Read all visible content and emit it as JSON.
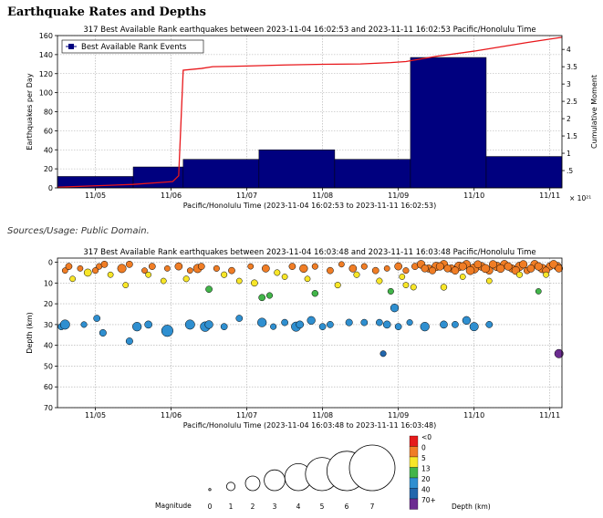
{
  "page": {
    "title": "Earthquake Rates and Depths",
    "sources": "Sources/Usage: Public Domain."
  },
  "chart_data": [
    {
      "type": "bar",
      "title": "317 Best Available Rank earthquakes between 2023-11-04 16:02:53 and 2023-11-11 16:02:53 Pacific/Honolulu Time",
      "xlabel": "Pacific/Honolulu Time (2023-11-04 16:02:53 to 2023-11-11 16:02:53)",
      "ylabel": "Earthquakes per Day",
      "y2label": "Cumulative Moment",
      "y2_multiplier": "× 10²¹",
      "x_ticks": [
        "11/05",
        "11/06",
        "11/07",
        "11/08",
        "11/09",
        "11/10",
        "11/11"
      ],
      "ylim": [
        0,
        160
      ],
      "y_ticks": [
        0,
        20,
        40,
        60,
        80,
        100,
        120,
        140,
        160
      ],
      "y2lim": [
        0,
        4.4
      ],
      "y2_ticks": [
        0.5,
        1,
        1.5,
        2,
        2.5,
        3,
        3.5,
        4
      ],
      "y2_tick_labels": [
        ".5",
        "1",
        "1.5",
        "2",
        "2.5",
        "3",
        "3.5",
        "4"
      ],
      "legend": {
        "label": "Best Available Rank Events",
        "position": "top-left"
      },
      "grid": true,
      "bar_color": "#00007f",
      "line_color": "#e8161a",
      "series": [
        {
          "name": "Best Available Rank Events",
          "bins": [
            {
              "start": 0.0,
              "end": 1.0,
              "value": 12
            },
            {
              "start": 1.0,
              "end": 1.66,
              "value": 22
            },
            {
              "start": 1.66,
              "end": 2.66,
              "value": 30
            },
            {
              "start": 2.66,
              "end": 3.66,
              "value": 40
            },
            {
              "start": 3.66,
              "end": 4.66,
              "value": 30
            },
            {
              "start": 4.66,
              "end": 5.66,
              "value": 137
            },
            {
              "start": 5.66,
              "end": 6.66,
              "value": 33
            }
          ]
        }
      ],
      "cumulative_moment": [
        [
          0.0,
          0.02
        ],
        [
          1.0,
          0.1
        ],
        [
          1.52,
          0.18
        ],
        [
          1.6,
          0.35
        ],
        [
          1.66,
          3.4
        ],
        [
          1.9,
          3.45
        ],
        [
          2.05,
          3.5
        ],
        [
          2.5,
          3.52
        ],
        [
          3.0,
          3.55
        ],
        [
          3.5,
          3.57
        ],
        [
          4.0,
          3.58
        ],
        [
          4.4,
          3.62
        ],
        [
          4.6,
          3.65
        ],
        [
          5.0,
          3.8
        ],
        [
          5.5,
          3.95
        ],
        [
          6.2,
          4.2
        ],
        [
          6.66,
          4.35
        ]
      ]
    },
    {
      "type": "scatter",
      "title": "317 Best Available Rank earthquakes between 2023-11-04 16:03:48 and 2023-11-11 16:03:48 Pacific/Honolulu Time",
      "xlabel": "Pacific/Honolulu Time (2023-11-04 16:03:48 to 2023-11-11 16:03:48)",
      "ylabel": "Depth (km)",
      "x_ticks": [
        "11/05",
        "11/06",
        "11/07",
        "11/08",
        "11/09",
        "11/10",
        "11/11"
      ],
      "ylim": [
        70,
        -2
      ],
      "y_ticks": [
        0,
        10,
        20,
        30,
        40,
        50,
        60,
        70
      ],
      "grid": true,
      "points": [
        [
          0.1,
          4,
          1.2
        ],
        [
          0.15,
          2,
          1.5
        ],
        [
          0.3,
          3,
          1.2
        ],
        [
          0.4,
          5,
          1.8
        ],
        [
          0.55,
          2,
          1.3
        ],
        [
          0.62,
          1,
          1.5
        ],
        [
          0.85,
          3,
          2.2
        ],
        [
          0.95,
          1,
          1.5
        ],
        [
          1.15,
          4,
          1.2
        ],
        [
          1.25,
          2,
          1.5
        ],
        [
          1.45,
          3,
          1.2
        ],
        [
          1.6,
          2,
          1.8
        ],
        [
          1.75,
          4,
          1.2
        ],
        [
          1.85,
          3,
          2.2
        ],
        [
          1.9,
          2,
          1.5
        ],
        [
          2.1,
          3,
          1.3
        ],
        [
          2.3,
          4,
          1.5
        ],
        [
          2.55,
          2,
          1.2
        ],
        [
          2.75,
          3,
          1.8
        ],
        [
          2.9,
          5,
          1.3
        ],
        [
          3.1,
          2,
          1.5
        ],
        [
          3.25,
          3,
          2.0
        ],
        [
          3.4,
          2,
          1.3
        ],
        [
          3.6,
          4,
          1.5
        ],
        [
          3.75,
          1,
          1.2
        ],
        [
          3.9,
          3,
          1.8
        ],
        [
          4.05,
          2,
          1.3
        ],
        [
          4.2,
          4,
          1.5
        ],
        [
          4.35,
          3,
          1.2
        ],
        [
          4.5,
          2,
          1.8
        ],
        [
          4.6,
          4,
          1.3
        ],
        [
          4.72,
          2,
          1.5
        ],
        [
          4.8,
          1,
          2.0
        ],
        [
          4.9,
          3,
          1.8
        ],
        [
          5.0,
          2,
          2.2
        ],
        [
          5.1,
          1,
          2.0
        ],
        [
          5.2,
          3,
          1.8
        ],
        [
          5.3,
          2,
          2.3
        ],
        [
          5.4,
          1,
          2.0
        ],
        [
          5.5,
          3,
          2.5
        ],
        [
          5.6,
          2,
          2.0
        ],
        [
          5.7,
          4,
          1.8
        ],
        [
          5.8,
          2,
          2.2
        ],
        [
          5.9,
          1,
          2.0
        ],
        [
          6.0,
          3,
          1.8
        ],
        [
          6.1,
          2,
          2.2
        ],
        [
          6.2,
          4,
          1.5
        ],
        [
          6.3,
          1,
          2.0
        ],
        [
          6.4,
          3,
          2.2
        ],
        [
          6.5,
          2,
          1.8
        ],
        [
          6.6,
          2,
          2.0
        ],
        [
          4.85,
          3,
          1.7
        ],
        [
          4.95,
          4,
          1.6
        ],
        [
          5.05,
          2,
          1.9
        ],
        [
          5.15,
          3,
          1.7
        ],
        [
          5.25,
          4,
          1.8
        ],
        [
          5.35,
          2,
          1.9
        ],
        [
          5.45,
          4,
          2.1
        ],
        [
          5.55,
          1,
          1.8
        ],
        [
          5.65,
          3,
          2.1
        ],
        [
          5.75,
          1,
          1.9
        ],
        [
          5.85,
          3,
          2.0
        ],
        [
          5.95,
          2,
          1.9
        ],
        [
          6.05,
          4,
          2.0
        ],
        [
          6.15,
          1,
          1.9
        ],
        [
          6.25,
          3,
          1.8
        ],
        [
          6.35,
          2,
          1.9
        ],
        [
          6.45,
          4,
          1.7
        ],
        [
          6.55,
          1,
          2.0
        ],
        [
          6.62,
          3,
          1.8
        ],
        [
          0.2,
          8,
          1.2
        ],
        [
          1.7,
          8,
          1.3
        ],
        [
          2.6,
          10,
          1.5
        ],
        [
          3.3,
          8,
          1.2
        ],
        [
          4.25,
          9,
          1.3
        ],
        [
          0.5,
          4,
          1.3
        ],
        [
          1.2,
          6,
          1.2
        ],
        [
          2.2,
          6,
          1.3
        ],
        [
          3.0,
          7,
          1.2
        ],
        [
          3.95,
          6,
          1.3
        ],
        [
          4.55,
          7,
          1.2
        ],
        [
          5.35,
          7,
          1.2
        ],
        [
          6.1,
          6,
          1.3
        ],
        [
          6.45,
          6,
          1.2
        ],
        [
          0.7,
          6,
          1.2
        ],
        [
          2.0,
          13,
          1.5
        ],
        [
          2.8,
          16,
          1.3
        ],
        [
          3.7,
          11,
          1.3
        ],
        [
          4.4,
          14,
          1.3
        ],
        [
          5.1,
          12,
          1.4
        ],
        [
          4.6,
          11,
          1.2
        ],
        [
          6.35,
          14,
          1.2
        ],
        [
          2.4,
          9,
          1.2
        ],
        [
          0.9,
          11,
          1.2
        ],
        [
          1.4,
          9,
          1.2
        ],
        [
          2.7,
          17,
          1.5
        ],
        [
          3.4,
          15,
          1.4
        ],
        [
          4.7,
          12,
          1.3
        ],
        [
          5.7,
          9,
          1.2
        ],
        [
          0.05,
          31,
          1.5
        ],
        [
          0.1,
          30,
          2.5
        ],
        [
          0.35,
          30,
          1.3
        ],
        [
          0.52,
          27,
          1.5
        ],
        [
          0.6,
          34,
          1.6
        ],
        [
          0.95,
          38,
          1.6
        ],
        [
          1.05,
          31,
          2.3
        ],
        [
          1.2,
          30,
          1.8
        ],
        [
          1.45,
          33,
          3.2
        ],
        [
          1.75,
          30,
          2.5
        ],
        [
          1.95,
          31,
          2.6
        ],
        [
          2.0,
          30,
          2.0
        ],
        [
          2.2,
          31,
          1.5
        ],
        [
          2.4,
          27,
          1.5
        ],
        [
          2.7,
          29,
          2.3
        ],
        [
          2.85,
          31,
          1.3
        ],
        [
          3.0,
          29,
          1.5
        ],
        [
          3.15,
          31,
          2.5
        ],
        [
          3.2,
          30,
          1.8
        ],
        [
          3.35,
          28,
          2.0
        ],
        [
          3.5,
          31,
          1.5
        ],
        [
          3.6,
          30,
          1.5
        ],
        [
          3.85,
          29,
          1.6
        ],
        [
          4.05,
          29,
          1.5
        ],
        [
          4.25,
          29,
          1.5
        ],
        [
          4.35,
          30,
          1.8
        ],
        [
          4.45,
          22,
          2.0
        ],
        [
          4.5,
          31,
          1.5
        ],
        [
          4.65,
          29,
          1.3
        ],
        [
          4.85,
          31,
          2.3
        ],
        [
          5.1,
          30,
          1.8
        ],
        [
          5.25,
          30,
          1.5
        ],
        [
          5.4,
          28,
          2.0
        ],
        [
          5.5,
          31,
          2.2
        ],
        [
          5.7,
          30,
          1.5
        ],
        [
          4.3,
          44,
          1.3
        ]
      ],
      "deep_points": [
        [
          6.62,
          44,
          2.2
        ]
      ],
      "depth_colors": [
        {
          "label": "<0",
          "color": "#e51b1b"
        },
        {
          "label": "0",
          "color": "#f07d25"
        },
        {
          "label": "5",
          "color": "#f8e628"
        },
        {
          "label": "13",
          "color": "#42b54a"
        },
        {
          "label": "20",
          "color": "#2f8fd0"
        },
        {
          "label": "40",
          "color": "#2166ac"
        },
        {
          "label": "70+",
          "color": "#6c2c91"
        }
      ],
      "magnitude_legend": {
        "label": "Magnitude",
        "values": [
          "0",
          "1",
          "2",
          "3",
          "4",
          "5",
          "6",
          "7"
        ]
      },
      "depth_legend_label": "Depth (km)"
    }
  ]
}
